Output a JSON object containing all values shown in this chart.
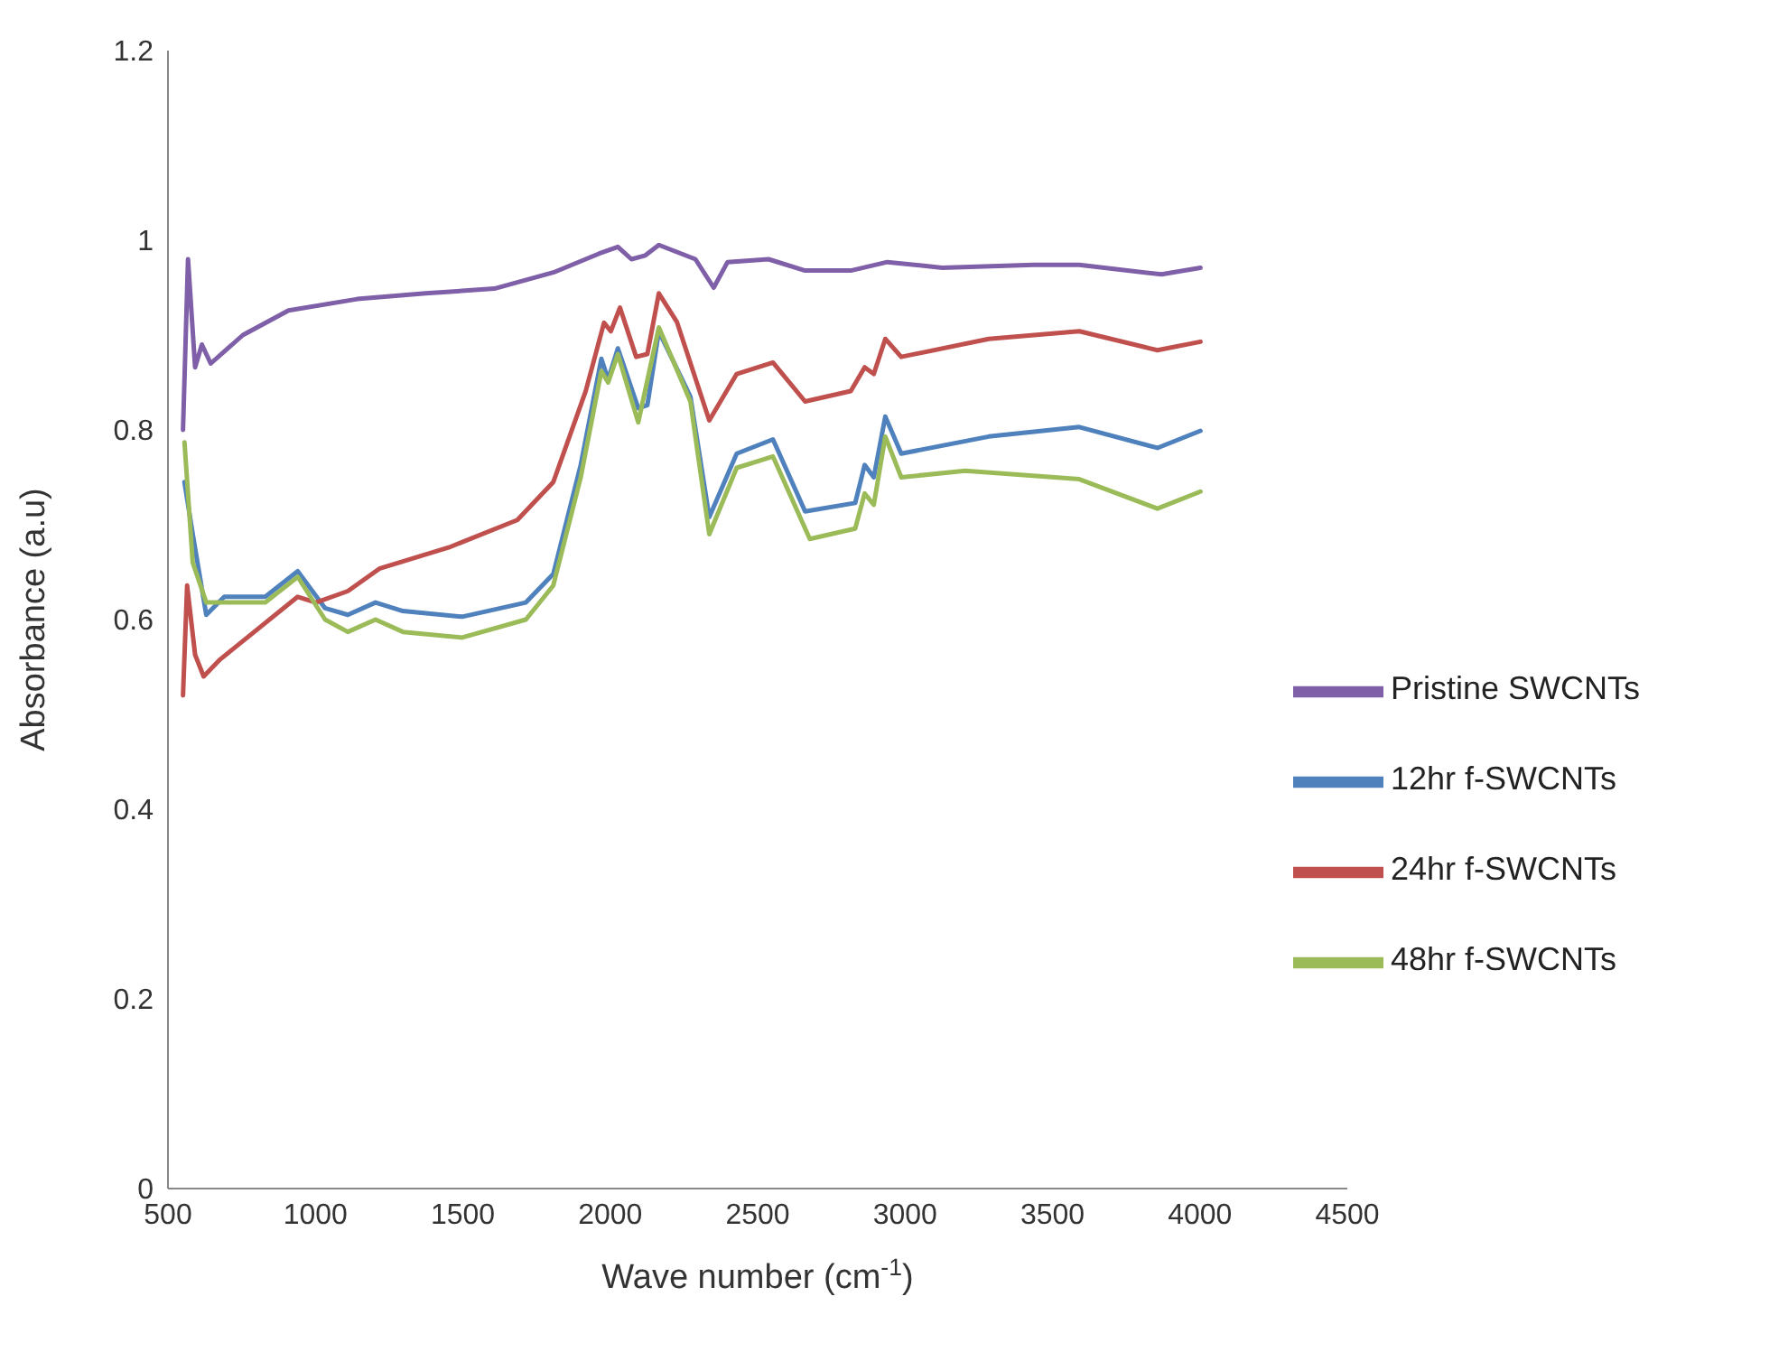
{
  "chart_data": {
    "type": "line",
    "xlabel": "Wave number (cm$^{-1}$)",
    "ylabel": "Absorbance (a.u)",
    "xlim": [
      500,
      4500
    ],
    "xticks": [
      500,
      1000,
      1500,
      2000,
      2500,
      3000,
      3500,
      4000,
      4500
    ],
    "ylim": [
      0,
      1.2
    ],
    "yticks": [
      0,
      0.2,
      0.4,
      0.6,
      0.8,
      1,
      1.2
    ],
    "grid": false,
    "legend": "right",
    "marker": "none",
    "line_style": "solid",
    "series": [
      {
        "name": "Pristine SWCNTs",
        "color": "#7e5fa8",
        "x": [
          551,
          568,
          592,
          615,
          645,
          754,
          909,
          1142,
          1374,
          1607,
          1807,
          1963,
          2026,
          2072,
          2119,
          2165,
          2289,
          2351,
          2398,
          2537,
          2661,
          2816,
          2940,
          3126,
          3435,
          3591,
          3870,
          4002
        ],
        "values": [
          0.8,
          0.98,
          0.866,
          0.89,
          0.87,
          0.9,
          0.926,
          0.938,
          0.944,
          0.949,
          0.966,
          0.986,
          0.993,
          0.98,
          0.984,
          0.995,
          0.98,
          0.95,
          0.977,
          0.98,
          0.968,
          0.968,
          0.977,
          0.971,
          0.974,
          0.974,
          0.964,
          0.971
        ]
      },
      {
        "name": "12hr f-SWCNTs",
        "color": "#4f81bd",
        "x": [
          556,
          584,
          630,
          691,
          830,
          940,
          1033,
          1110,
          1204,
          1297,
          1498,
          1714,
          1807,
          1900,
          1970,
          1993,
          2026,
          2095,
          2126,
          2165,
          2272,
          2336,
          2429,
          2552,
          2661,
          2831,
          2863,
          2894,
          2933,
          2987,
          3284,
          3591,
          3856,
          4002
        ],
        "values": [
          0.745,
          0.69,
          0.605,
          0.624,
          0.624,
          0.651,
          0.612,
          0.605,
          0.618,
          0.609,
          0.603,
          0.618,
          0.648,
          0.763,
          0.875,
          0.853,
          0.886,
          0.823,
          0.826,
          0.904,
          0.835,
          0.708,
          0.775,
          0.79,
          0.714,
          0.723,
          0.763,
          0.75,
          0.814,
          0.775,
          0.793,
          0.803,
          0.781,
          0.799
        ]
      },
      {
        "name": "24hr f-SWCNTs",
        "color": "#c0504d",
        "x": [
          551,
          565,
          592,
          621,
          677,
          940,
          1002,
          1110,
          1219,
          1452,
          1685,
          1807,
          1917,
          1979,
          2002,
          2033,
          2088,
          2126,
          2165,
          2226,
          2336,
          2429,
          2552,
          2661,
          2816,
          2863,
          2894,
          2933,
          2987,
          3284,
          3591,
          3856,
          4002
        ],
        "values": [
          0.52,
          0.636,
          0.563,
          0.54,
          0.558,
          0.624,
          0.618,
          0.63,
          0.654,
          0.676,
          0.705,
          0.745,
          0.841,
          0.913,
          0.904,
          0.929,
          0.877,
          0.88,
          0.944,
          0.914,
          0.81,
          0.859,
          0.871,
          0.83,
          0.841,
          0.866,
          0.859,
          0.896,
          0.877,
          0.896,
          0.904,
          0.884,
          0.893
        ]
      },
      {
        "name": "48hr f-SWCNTs",
        "color": "#9bbb59",
        "x": [
          556,
          584,
          630,
          830,
          940,
          1033,
          1110,
          1204,
          1297,
          1498,
          1714,
          1807,
          1900,
          1970,
          1993,
          2026,
          2095,
          2165,
          2272,
          2336,
          2429,
          2552,
          2677,
          2831,
          2863,
          2894,
          2933,
          2987,
          3204,
          3591,
          3856,
          4002
        ],
        "values": [
          0.787,
          0.66,
          0.618,
          0.618,
          0.645,
          0.6,
          0.587,
          0.6,
          0.587,
          0.581,
          0.6,
          0.636,
          0.75,
          0.862,
          0.85,
          0.88,
          0.808,
          0.908,
          0.83,
          0.69,
          0.76,
          0.772,
          0.685,
          0.696,
          0.733,
          0.721,
          0.793,
          0.75,
          0.757,
          0.748,
          0.717,
          0.735
        ]
      }
    ]
  }
}
